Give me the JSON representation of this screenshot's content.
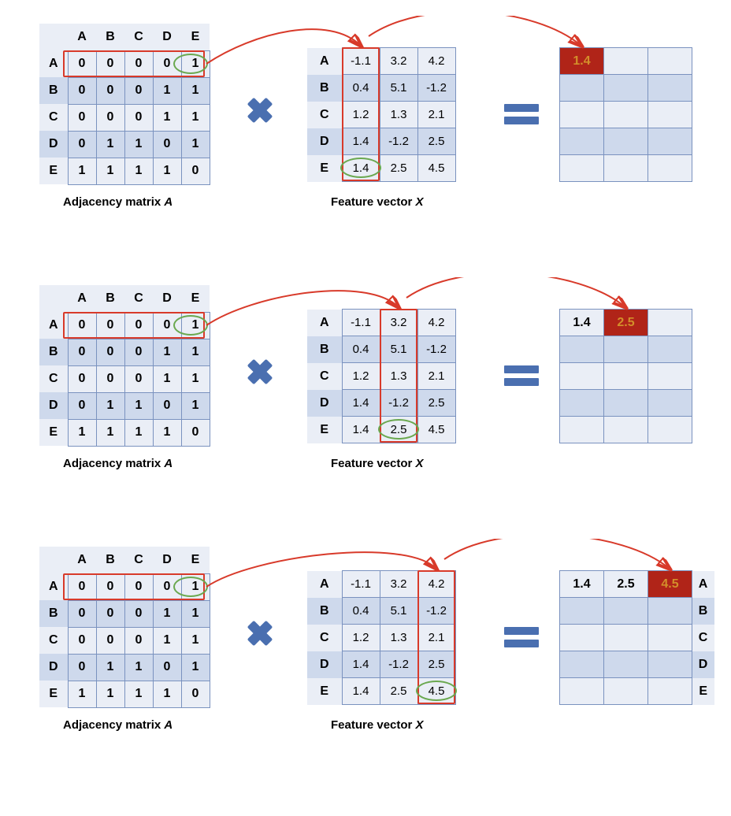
{
  "labels": [
    "A",
    "B",
    "C",
    "D",
    "E"
  ],
  "adjacency": {
    "caption": "Adjacency matrix A",
    "rows": [
      [
        0,
        0,
        0,
        0,
        1
      ],
      [
        0,
        0,
        0,
        1,
        1
      ],
      [
        0,
        0,
        0,
        1,
        1
      ],
      [
        0,
        1,
        1,
        0,
        1
      ],
      [
        1,
        1,
        1,
        1,
        0
      ]
    ],
    "highlight_row_idx": 0,
    "circle_cell": {
      "r": 0,
      "c": 4
    }
  },
  "feature": {
    "caption": "Feature vector X",
    "rows": [
      [
        -1.1,
        3.2,
        4.2
      ],
      [
        0.4,
        5.1,
        -1.2
      ],
      [
        1.2,
        1.3,
        2.1
      ],
      [
        1.4,
        -1.2,
        2.5
      ],
      [
        1.4,
        2.5,
        4.5
      ]
    ]
  },
  "result": {
    "values": [
      1.4,
      2.5,
      4.5
    ]
  },
  "colors": {
    "header_bg": "#eaeef6",
    "row_dark": "#ced9ec",
    "row_light": "#eaeef6",
    "border": "#7a92bf",
    "accent": "#4a6fb0",
    "highlight_border": "#d83a2a",
    "circle": "#6aa84f",
    "result_highlight_bg": "#b02418",
    "result_highlight_fg": "#d38f2a",
    "text": "#000000"
  },
  "panels": [
    {
      "feature_col": 0,
      "result_shown": 1,
      "show_result_labels": false
    },
    {
      "feature_col": 1,
      "result_shown": 2,
      "show_result_labels": false
    },
    {
      "feature_col": 2,
      "result_shown": 3,
      "show_result_labels": true
    }
  ],
  "layout": {
    "adj_cell_w": 36,
    "adj_cell_h": 34,
    "feat_cell_w": 48,
    "feat_cell_h": 34,
    "feat_rowhdr_w": 44,
    "res_cell_w": 56,
    "res_cell_h": 34
  }
}
